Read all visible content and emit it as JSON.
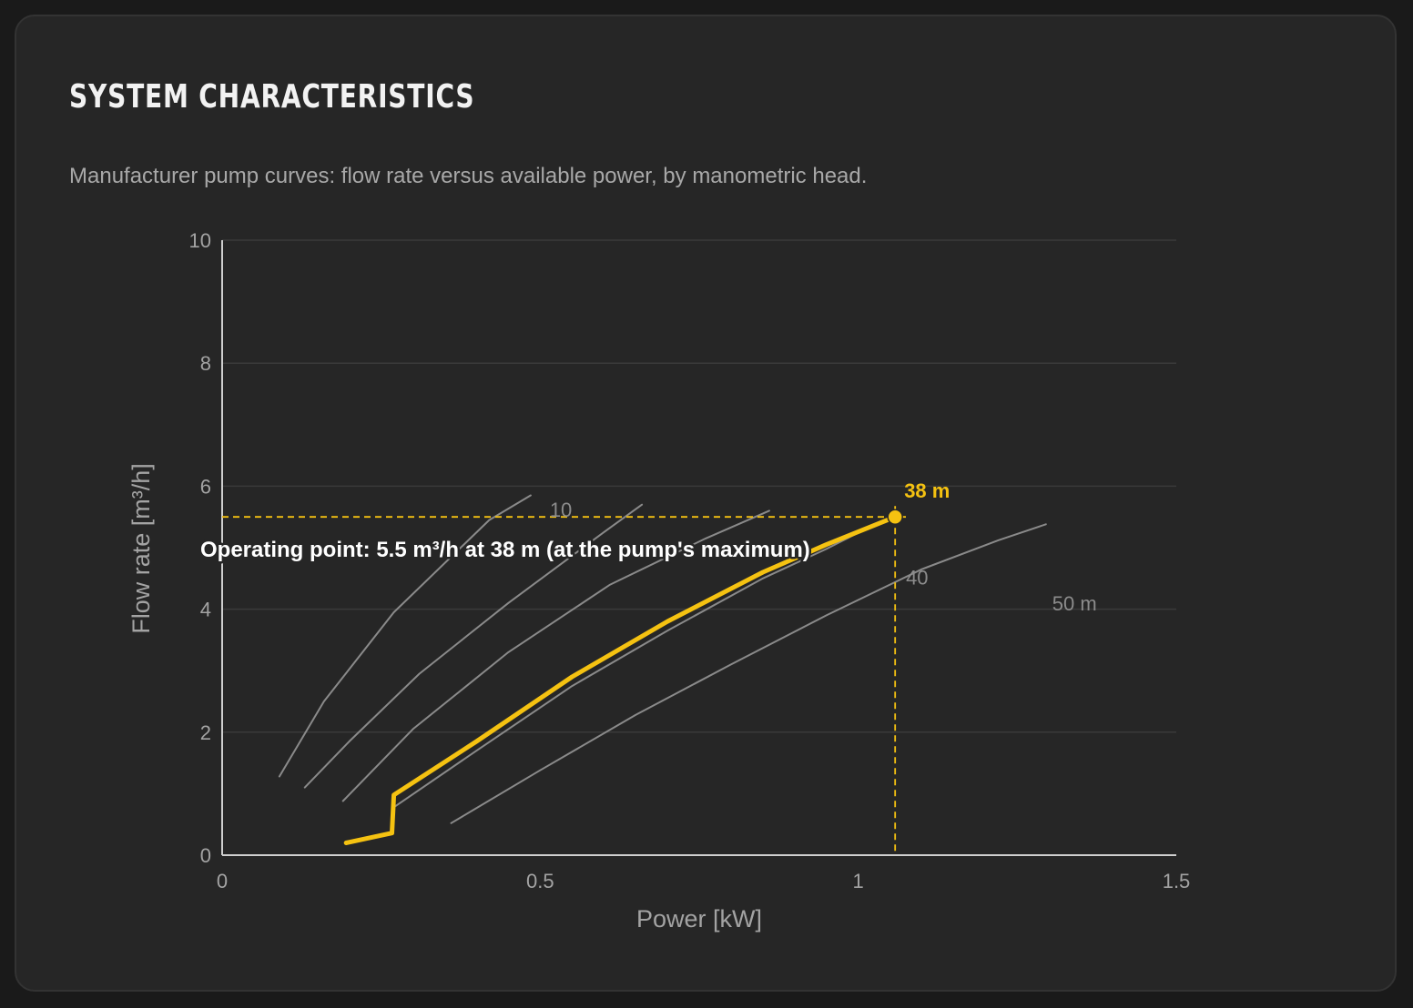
{
  "panel": {
    "title": "SYSTEM CHARACTERISTICS",
    "subtitle": "Manufacturer pump curves: flow rate versus available power, by manometric head."
  },
  "colors": {
    "background": "#262626",
    "grid": "#3a3a3a",
    "axis": "#cfcfcf",
    "curve": "#8a8a8a",
    "highlight": "#f5c211",
    "text": "#a3a3a3"
  },
  "chart_data": {
    "type": "line",
    "title": "",
    "xlabel": "Power [kW]",
    "ylabel": "Flow rate [m³/h]",
    "xlim": [
      0,
      1.5
    ],
    "ylim": [
      0,
      10
    ],
    "xticks": [
      0,
      0.5,
      1,
      1.5
    ],
    "xtick_labels": [
      "0",
      "0.5",
      "1",
      "1.5"
    ],
    "yticks": [
      0,
      2,
      4,
      6,
      8,
      10
    ],
    "ytick_labels": [
      "0",
      "2",
      "4",
      "6",
      "8",
      "10"
    ],
    "grid": "horizontal",
    "legend": "none",
    "series": [
      {
        "label": "10",
        "label_x": 0.515,
        "label_y": 5.5,
        "x": [
          0.09,
          0.16,
          0.27,
          0.42,
          0.485
        ],
        "y": [
          1.28,
          2.5,
          3.95,
          5.45,
          5.85
        ]
      },
      {
        "label": "",
        "x": [
          0.13,
          0.2,
          0.31,
          0.45,
          0.6,
          0.66
        ],
        "y": [
          1.1,
          1.85,
          2.95,
          4.1,
          5.25,
          5.7
        ]
      },
      {
        "label": "",
        "x": [
          0.19,
          0.3,
          0.45,
          0.61,
          0.76,
          0.86
        ],
        "y": [
          0.88,
          2.05,
          3.3,
          4.4,
          5.15,
          5.6
        ]
      },
      {
        "label": "40",
        "label_x": 1.075,
        "label_y": 4.4,
        "x": [
          0.27,
          0.4,
          0.55,
          0.7,
          0.85,
          0.95,
          1.03
        ],
        "y": [
          0.78,
          1.7,
          2.75,
          3.65,
          4.5,
          4.98,
          5.4
        ]
      },
      {
        "label": "50 m",
        "label_x": 1.305,
        "label_y": 3.98,
        "x": [
          0.36,
          0.5,
          0.65,
          0.8,
          0.95,
          1.1,
          1.22,
          1.295
        ],
        "y": [
          0.52,
          1.38,
          2.28,
          3.1,
          3.9,
          4.65,
          5.12,
          5.38
        ]
      }
    ],
    "highlight": {
      "name": "38 m",
      "x": [
        0.195,
        0.267,
        0.27,
        0.4,
        0.55,
        0.7,
        0.85,
        0.95,
        1.058
      ],
      "y": [
        0.2,
        0.36,
        0.98,
        1.85,
        2.9,
        3.8,
        4.6,
        5.05,
        5.5
      ]
    },
    "operating_point": {
      "x": 1.058,
      "y": 5.5,
      "head_label": "38 m",
      "annotation": "Operating point: 5.5 m³/h at 38 m (at the pump's maximum)"
    }
  }
}
